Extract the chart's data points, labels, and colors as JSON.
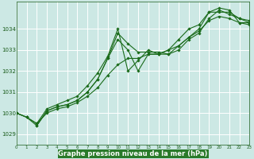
{
  "bg_color": "#cce8e4",
  "plot_bg_color": "#cce8e4",
  "grid_color": "#ffffff",
  "line_color": "#1a6b1a",
  "marker_color": "#1a6b1a",
  "text_color": "#1a5c1a",
  "label_bg_color": "#2a7a2a",
  "ylabel_ticks": [
    1029,
    1030,
    1031,
    1032,
    1033,
    1034
  ],
  "xlabel_ticks": [
    0,
    1,
    2,
    3,
    4,
    5,
    6,
    7,
    8,
    9,
    10,
    11,
    12,
    13,
    14,
    15,
    16,
    17,
    18,
    19,
    20,
    21,
    22,
    23
  ],
  "xlabel_label": "Graphe pression niveau de la mer (hPa)",
  "xlim": [
    0,
    23
  ],
  "ylim": [
    1028.5,
    1035.3
  ],
  "lines": [
    {
      "x": [
        0,
        1,
        2,
        3,
        4,
        5,
        6,
        7,
        8,
        9,
        10,
        11,
        12,
        13,
        14,
        15,
        16,
        17,
        18,
        19,
        20,
        21,
        22,
        23
      ],
      "y": [
        1030.0,
        1029.8,
        1029.4,
        1030.1,
        1030.3,
        1030.4,
        1030.6,
        1031.0,
        1031.6,
        1032.6,
        1033.8,
        1033.3,
        1032.9,
        1032.9,
        1032.9,
        1032.8,
        1033.2,
        1033.6,
        1034.0,
        1034.8,
        1035.0,
        1034.9,
        1034.3,
        1034.3
      ]
    },
    {
      "x": [
        2,
        3,
        4,
        5,
        6,
        7,
        8,
        9,
        10,
        11,
        12,
        13,
        14,
        15,
        16,
        17,
        18,
        19,
        20,
        21,
        22,
        23
      ],
      "y": [
        1029.4,
        1030.1,
        1030.3,
        1030.4,
        1030.6,
        1031.0,
        1031.6,
        1032.6,
        1033.5,
        1033.0,
        1032.0,
        1032.8,
        1032.8,
        1032.8,
        1033.0,
        1033.5,
        1033.8,
        1034.5,
        1034.9,
        1034.7,
        1034.5,
        1034.3
      ]
    },
    {
      "x": [
        0,
        1,
        2,
        3,
        4,
        5,
        6,
        7,
        8,
        9,
        10,
        11,
        12,
        13,
        14,
        15,
        16,
        17,
        18,
        19,
        20,
        21,
        22,
        23
      ],
      "y": [
        1030.0,
        1029.8,
        1029.5,
        1030.0,
        1030.2,
        1030.3,
        1030.5,
        1030.8,
        1031.2,
        1031.8,
        1032.3,
        1032.6,
        1032.6,
        1032.8,
        1032.8,
        1033.0,
        1033.2,
        1033.6,
        1033.9,
        1034.4,
        1034.6,
        1034.5,
        1034.3,
        1034.2
      ]
    },
    {
      "x": [
        0,
        1,
        2,
        3,
        4,
        5,
        6,
        7,
        8,
        9,
        10,
        11,
        12,
        13,
        14,
        15,
        16,
        17,
        18,
        19,
        20,
        21,
        22,
        23
      ],
      "y": [
        1030.0,
        1029.8,
        1029.5,
        1030.2,
        1030.4,
        1030.6,
        1030.8,
        1031.3,
        1031.9,
        1032.7,
        1034.0,
        1032.0,
        1032.5,
        1033.0,
        1032.8,
        1033.0,
        1033.5,
        1034.0,
        1034.2,
        1034.8,
        1034.8,
        1034.8,
        1034.5,
        1034.4
      ]
    }
  ]
}
